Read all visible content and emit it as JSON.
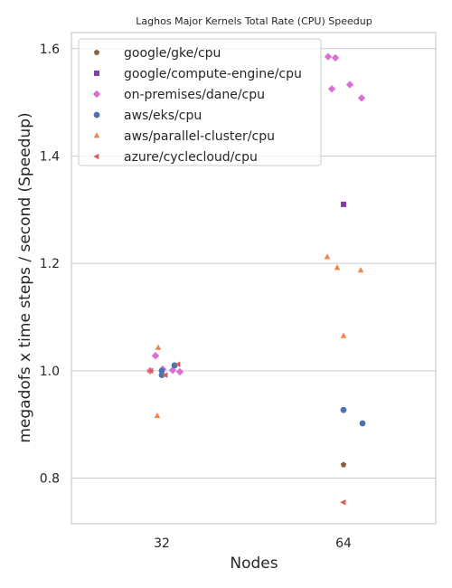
{
  "chart_data": {
    "type": "scatter",
    "title": "Laghos Major Kernels Total Rate (CPU) Speedup",
    "xlabel": "Nodes",
    "ylabel": "megadofs x time steps / second (Speedup)",
    "categories": [
      "32",
      "64"
    ],
    "ylim": [
      0.715,
      1.63
    ],
    "yticks": [
      0.8,
      1.0,
      1.2,
      1.4,
      1.6
    ],
    "ytick_labels": [
      "0.8",
      "1.0",
      "1.2",
      "1.4",
      "1.6"
    ],
    "grid": true,
    "legend": "top-left",
    "series": [
      {
        "name": "google/gke/cpu",
        "marker": "pentagon",
        "color": "#8c613c",
        "points": [
          {
            "x": "64",
            "y": 0.825
          }
        ]
      },
      {
        "name": "google/compute-engine/cpu",
        "marker": "square",
        "color": "#7e3fa8",
        "points": [
          {
            "x": "64",
            "y": 1.31
          }
        ]
      },
      {
        "name": "on-premises/dane/cpu",
        "marker": "diamond",
        "color": "#da70d6",
        "points": [
          {
            "x": "32",
            "y": 1.0
          },
          {
            "x": "32",
            "y": 1.028
          },
          {
            "x": "32",
            "y": 1.003
          },
          {
            "x": "32",
            "y": 1.001
          },
          {
            "x": "32",
            "y": 0.998
          },
          {
            "x": "64",
            "y": 1.585
          },
          {
            "x": "64",
            "y": 1.583
          },
          {
            "x": "64",
            "y": 1.525
          },
          {
            "x": "64",
            "y": 1.533
          },
          {
            "x": "64",
            "y": 1.508
          }
        ]
      },
      {
        "name": "aws/eks/cpu",
        "marker": "circle",
        "color": "#4c72b0",
        "points": [
          {
            "x": "32",
            "y": 1.0
          },
          {
            "x": "32",
            "y": 0.992
          },
          {
            "x": "32",
            "y": 1.01
          },
          {
            "x": "64",
            "y": 0.927
          },
          {
            "x": "64",
            "y": 0.902
          }
        ]
      },
      {
        "name": "aws/parallel-cluster/cpu",
        "marker": "triangle-up",
        "color": "#ee854a",
        "points": [
          {
            "x": "32",
            "y": 1.0
          },
          {
            "x": "32",
            "y": 1.043
          },
          {
            "x": "32",
            "y": 0.916
          },
          {
            "x": "64",
            "y": 1.212
          },
          {
            "x": "64",
            "y": 1.192
          },
          {
            "x": "64",
            "y": 1.187
          },
          {
            "x": "64",
            "y": 1.065
          }
        ]
      },
      {
        "name": "azure/cyclecloud/cpu",
        "marker": "triangle-left",
        "color": "#d65f5f",
        "points": [
          {
            "x": "32",
            "y": 1.0
          },
          {
            "x": "32",
            "y": 0.992
          },
          {
            "x": "32",
            "y": 1.012
          },
          {
            "x": "64",
            "y": 0.755
          }
        ]
      }
    ]
  }
}
